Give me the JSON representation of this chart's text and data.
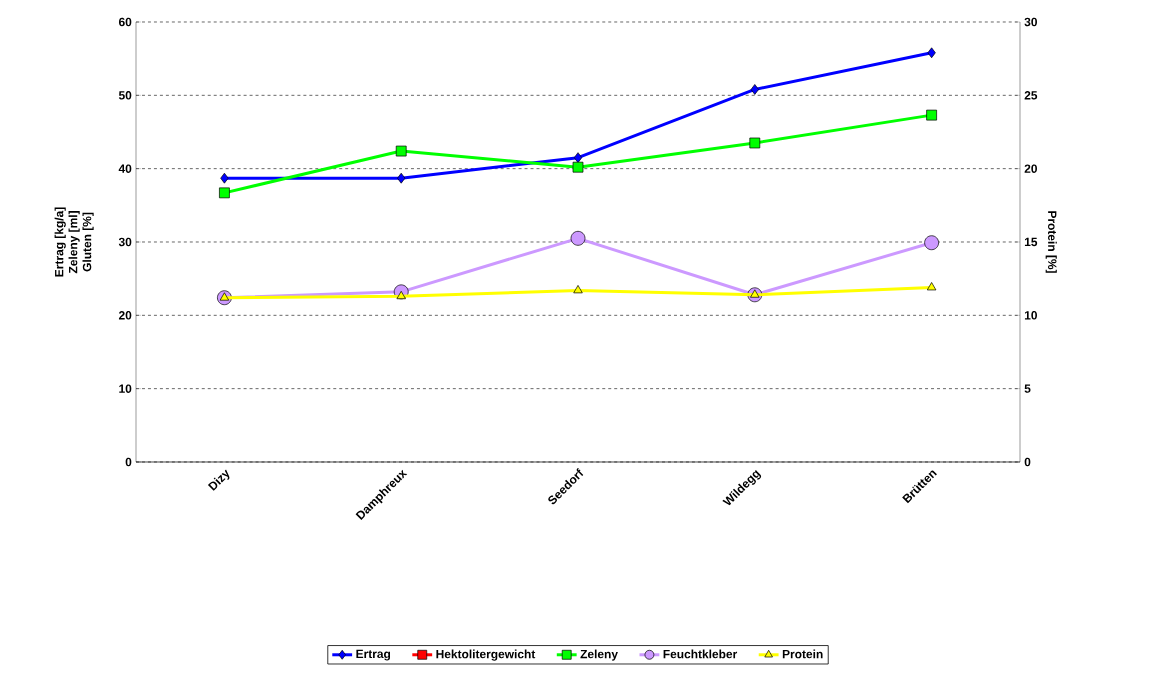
{
  "chart_data": {
    "type": "line",
    "categories": [
      "Dizy",
      "Damphreux",
      "Seedorf",
      "Wildegg",
      "Brütten"
    ],
    "ylabel": "Ertrag [kg/a] Zeleny [ml] Gluten [%]",
    "y2label": "Protein [%]",
    "ylim": [
      0,
      60
    ],
    "yticks": [
      0,
      10,
      20,
      30,
      40,
      50,
      60
    ],
    "y2lim": [
      0,
      30
    ],
    "y2ticks": [
      0,
      5,
      10,
      15,
      20,
      25,
      30
    ],
    "grid": "y",
    "legend": "bottom",
    "series": [
      {
        "name": "Ertrag",
        "color": "#0000ff",
        "marker": "diamond",
        "values": [
          38.7,
          38.7,
          41.5,
          50.8,
          55.8
        ]
      },
      {
        "name": "Hektolitergewicht",
        "color": "#ff0000",
        "marker": "square",
        "values": [
          null,
          null,
          null,
          null,
          null
        ]
      },
      {
        "name": "Zeleny",
        "color": "#00ff00",
        "marker": "square",
        "values": [
          36.7,
          42.4,
          40.2,
          43.5,
          47.3
        ]
      },
      {
        "name": "Feuchtkleber",
        "color": "#cc99ff",
        "marker": "circle",
        "values": [
          22.4,
          23.2,
          30.5,
          22.8,
          29.9
        ]
      },
      {
        "name": "Protein",
        "color": "#ffff00",
        "marker": "triangle",
        "axis": "y2",
        "values": [
          11.2,
          11.3,
          11.7,
          11.4,
          11.9
        ]
      }
    ]
  }
}
